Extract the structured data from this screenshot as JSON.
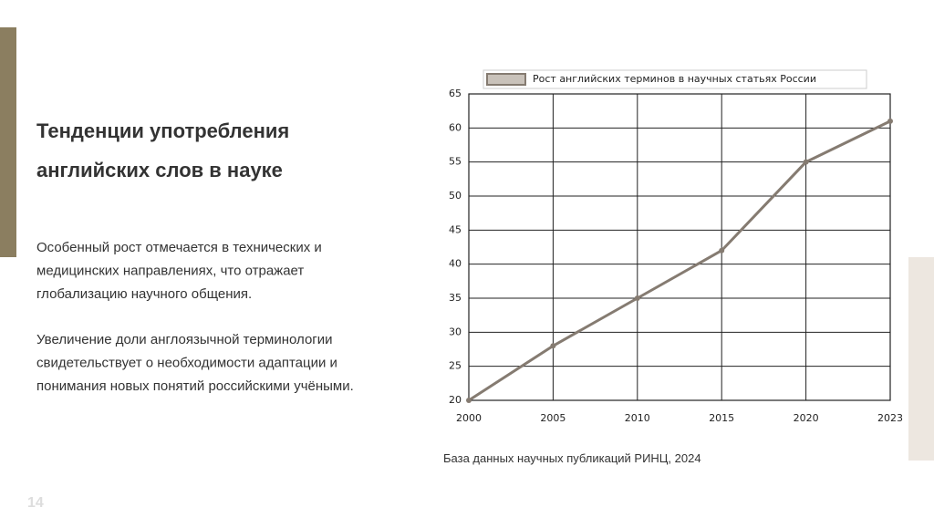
{
  "header": {
    "title_lines": [
      "Тенденции употребления",
      "английских слов в науке"
    ]
  },
  "paragraphs": [
    [
      "Особенный рост отмечается в технических и",
      "медицинских направлениях, что отражает",
      "глобализацию научного общения."
    ],
    [
      "Увеличение доли англоязычной терминологии",
      "свидетельствует о необходимости адаптации и",
      "понимания новых понятий российскими учёными."
    ]
  ],
  "source": "База данных научных публикаций РИНЦ, 2024",
  "slide_number": "14",
  "chart_data": {
    "type": "line",
    "categories": [
      "2000",
      "2005",
      "2010",
      "2015",
      "2020",
      "2023"
    ],
    "series": [
      {
        "name": "Рост английских терминов в научных статьях России",
        "color": "#857b71",
        "values": [
          20,
          28,
          35,
          42,
          55,
          61
        ]
      }
    ],
    "ylim": [
      20,
      65
    ],
    "yticks": [
      20,
      25,
      30,
      35,
      40,
      45,
      50,
      55,
      60,
      65
    ],
    "grid": true
  }
}
